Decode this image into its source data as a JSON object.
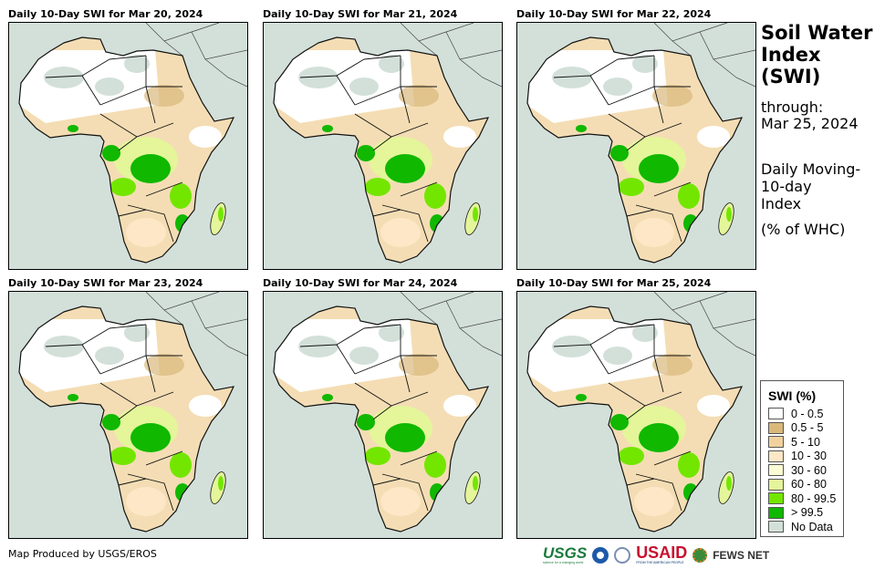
{
  "panels": [
    {
      "title": "Daily 10-Day SWI for Mar 20, 2024"
    },
    {
      "title": "Daily 10-Day SWI for Mar 21, 2024"
    },
    {
      "title": "Daily 10-Day SWI for Mar 22, 2024"
    },
    {
      "title": "Daily 10-Day SWI for Mar 23, 2024"
    },
    {
      "title": "Daily 10-Day SWI for Mar 24, 2024"
    },
    {
      "title": "Daily 10-Day SWI for Mar 25, 2024"
    }
  ],
  "side": {
    "title_lines": [
      "Soil Water",
      "Index",
      "(SWI)"
    ],
    "through": "through:",
    "date": "Mar 25, 2024",
    "desc_lines": [
      "Daily Moving-",
      "10-day",
      "Index"
    ],
    "unit": "(% of WHC)"
  },
  "legend": {
    "title": "SWI (%)",
    "items": [
      {
        "label": "0 - 0.5",
        "color": "#ffffff"
      },
      {
        "label": "0.5 - 5",
        "color": "#d9b87a"
      },
      {
        "label": "5 - 10",
        "color": "#f1d29e"
      },
      {
        "label": "10 - 30",
        "color": "#fde7c6"
      },
      {
        "label": "30 - 60",
        "color": "#fbfbd5"
      },
      {
        "label": "60 - 80",
        "color": "#e4f59a"
      },
      {
        "label": "80 - 99.5",
        "color": "#73e600"
      },
      {
        "label": "> 99.5",
        "color": "#10b800"
      },
      {
        "label": "No Data",
        "color": "#d3e0da"
      }
    ]
  },
  "credit": "Map Produced by USGS/EROS",
  "logos": {
    "usgs": "USGS",
    "usgs_tag": "science for a changing world",
    "usaid": "USAID",
    "usaid_tag": "FROM THE AMERICAN PEOPLE",
    "fews": "FEWS NET"
  }
}
